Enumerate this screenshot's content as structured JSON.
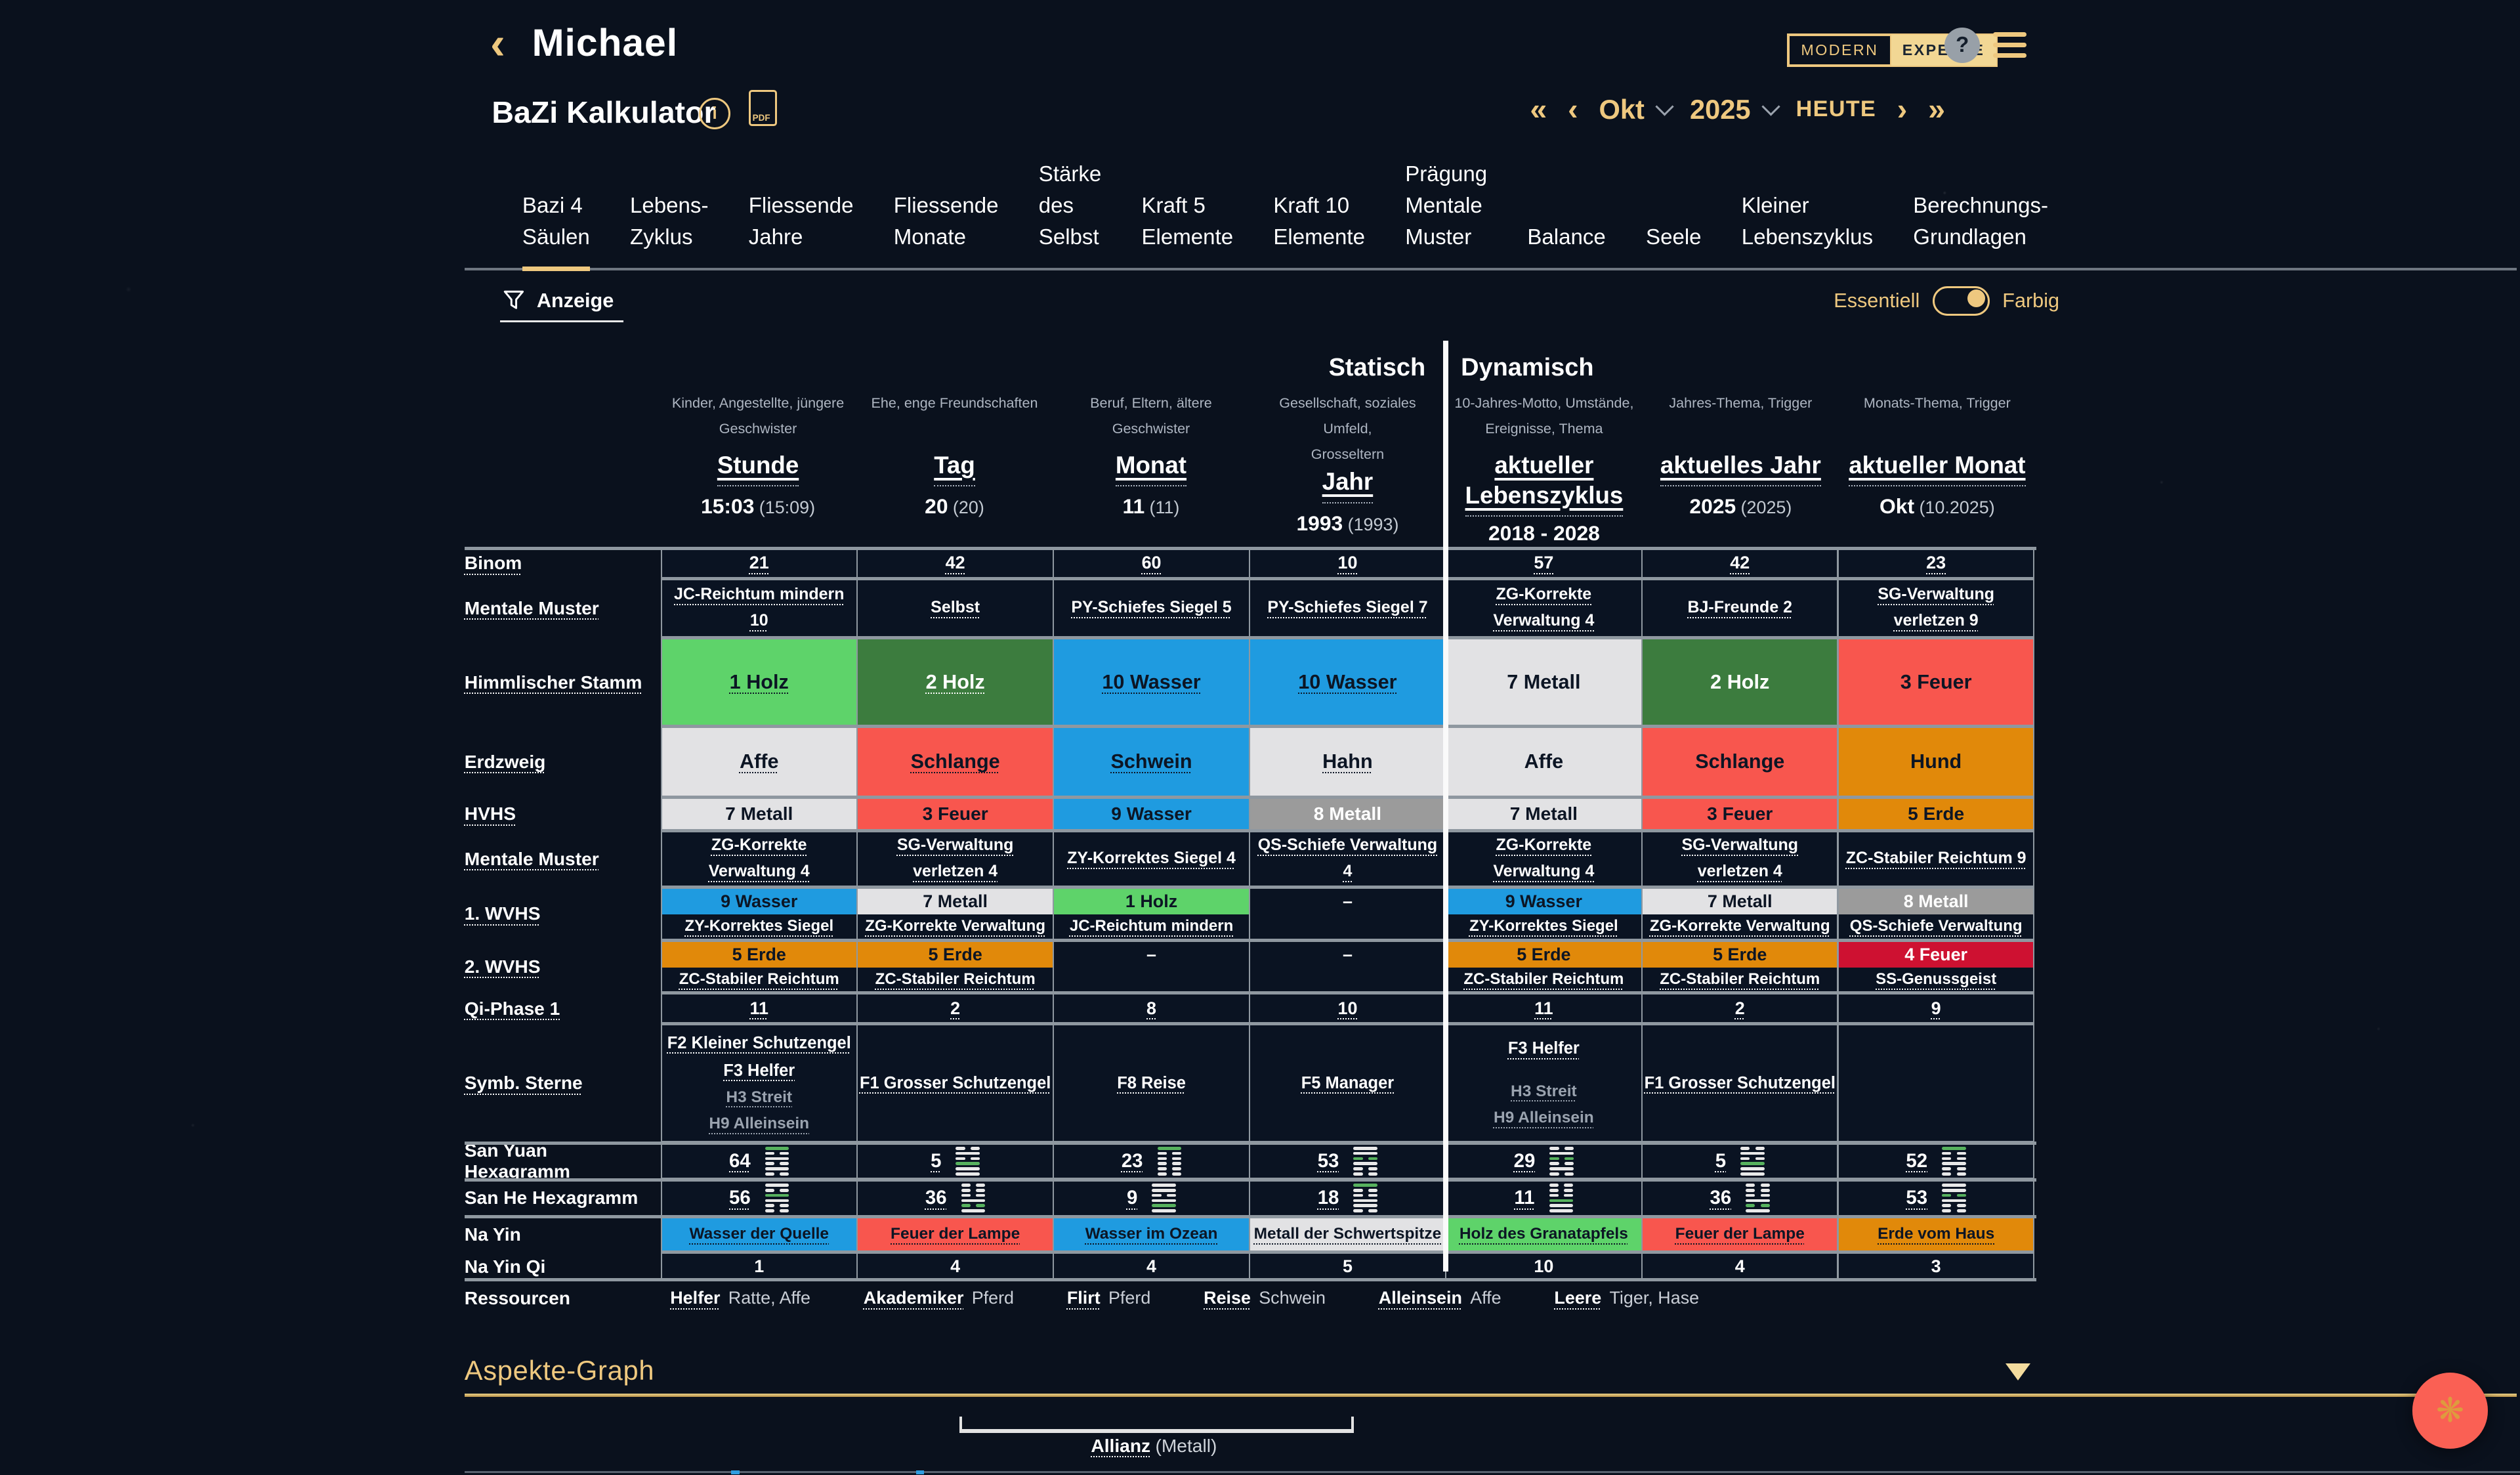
{
  "theme": {
    "accent": "#eec87f",
    "page_bg": "#0a111d",
    "cell_bg": "#0a1322",
    "grid_line": "#8f98a0",
    "muted": "#aeb6c2",
    "fab_bg": "#fa6054",
    "fab_icon": "#de9b3e",
    "help_bg": "#98a0a8",
    "divider": "#fafafa"
  },
  "cell_colors": {
    "blue": "#1f9be0",
    "red": "#f8564e",
    "green": "#5ed36a",
    "dgreen": "#3c7c3e",
    "orange": "#e1890a",
    "light": "#e2e2e4",
    "gray": "#9b9b9b",
    "crimson": "#ce1131",
    "none": "#0a1322"
  },
  "header": {
    "back": "‹",
    "title": "Michael",
    "badge_left": "MODERN",
    "badge_right": "EXPERTE",
    "help": "?"
  },
  "toolbar": {
    "title": "BaZi Kalkulator",
    "info": "i",
    "pdf_label": "PDF"
  },
  "datenav": {
    "first": "«",
    "prev": "‹",
    "month": "Okt",
    "year": "2025",
    "today": "HEUTE",
    "next": "›",
    "last": "»"
  },
  "tabs": [
    {
      "label": "Bazi 4\nSäulen",
      "active": true
    },
    {
      "label": "Lebens-\nZyklus"
    },
    {
      "label": "Fliessende\nJahre"
    },
    {
      "label": "Fliessende\nMonate"
    },
    {
      "label": "Stärke\ndes\nSelbst"
    },
    {
      "label": "Kraft 5\nElemente"
    },
    {
      "label": "Kraft 10\nElemente"
    },
    {
      "label": "Prägung\nMentale\nMuster"
    },
    {
      "label": "Balance"
    },
    {
      "label": "Seele"
    },
    {
      "label": "Kleiner\nLebenszyklus"
    },
    {
      "label": "Berechnungs-\nGrundlagen"
    }
  ],
  "filter": {
    "label": "Anzeige"
  },
  "display_toggle": {
    "left": "Essentiell",
    "right": "Farbig"
  },
  "sections": {
    "static": "Statisch",
    "dynamic": "Dynamisch"
  },
  "columns": [
    {
      "desc": "Kinder, Angestellte, jüngere\nGeschwister",
      "title": "Stunde",
      "value": "15:03",
      "paren": "(15:09)"
    },
    {
      "desc": "Ehe, enge Freundschaften",
      "title": "Tag",
      "value": "20",
      "paren": "(20)"
    },
    {
      "desc": "Beruf, Eltern, ältere Geschwister",
      "title": "Monat",
      "value": "11",
      "paren": "(11)"
    },
    {
      "desc": "Gesellschaft, soziales Umfeld,\nGrosseltern",
      "title": "Jahr",
      "value": "1993",
      "paren": "(1993)"
    },
    {
      "desc": "10-Jahres-Motto, Umstände,\nEreignisse, Thema",
      "title": "aktueller\nLebenszyklus",
      "period": "2018 - 2028"
    },
    {
      "desc": "Jahres-Thema, Trigger",
      "title": "aktuelles Jahr",
      "value": "2025",
      "paren": "(2025)"
    },
    {
      "desc": "Monats-Thema, Trigger",
      "title": "aktueller Monat",
      "value": "Okt",
      "paren": "(10.2025)"
    }
  ],
  "rows": {
    "binom": {
      "label": "Binom",
      "values": [
        "21",
        "42",
        "60",
        "10",
        "57",
        "42",
        "23"
      ]
    },
    "mental1": {
      "label": "Mentale Muster",
      "values": [
        "JC-Reichtum mindern 10",
        "Selbst",
        "PY-Schiefes Siegel 5",
        "PY-Schiefes Siegel 7",
        "ZG-Korrekte Verwaltung 4",
        "BJ-Freunde 2",
        "SG-Verwaltung verletzen 9"
      ]
    },
    "stamm": {
      "label": "Himmlischer Stamm",
      "cells": [
        {
          "t": "1 Holz",
          "c": "green",
          "u": 1
        },
        {
          "t": "2 Holz",
          "c": "dgreen",
          "u": 1
        },
        {
          "t": "10 Wasser",
          "c": "blue",
          "u": 1
        },
        {
          "t": "10 Wasser",
          "c": "blue",
          "u": 1
        },
        {
          "t": "7 Metall",
          "c": "light"
        },
        {
          "t": "2 Holz",
          "c": "dgreen"
        },
        {
          "t": "3 Feuer",
          "c": "red"
        }
      ]
    },
    "erdzweig": {
      "label": "Erdzweig",
      "cells": [
        {
          "t": "Affe",
          "c": "light",
          "u": 1
        },
        {
          "t": "Schlange",
          "c": "red",
          "u": 1
        },
        {
          "t": "Schwein",
          "c": "blue",
          "u": 1
        },
        {
          "t": "Hahn",
          "c": "light",
          "u": 1
        },
        {
          "t": "Affe",
          "c": "light"
        },
        {
          "t": "Schlange",
          "c": "red"
        },
        {
          "t": "Hund",
          "c": "orange"
        }
      ]
    },
    "hvhs": {
      "label": "HVHS",
      "cells": [
        {
          "t": "7 Metall",
          "c": "light"
        },
        {
          "t": "3 Feuer",
          "c": "red"
        },
        {
          "t": "9 Wasser",
          "c": "blue"
        },
        {
          "t": "8 Metall",
          "c": "gray"
        },
        {
          "t": "7 Metall",
          "c": "light"
        },
        {
          "t": "3 Feuer",
          "c": "red"
        },
        {
          "t": "5 Erde",
          "c": "orange"
        }
      ]
    },
    "mental2": {
      "label": "Mentale Muster",
      "values": [
        "ZG-Korrekte Verwaltung 4",
        "SG-Verwaltung verletzen 4",
        "ZY-Korrektes Siegel 4",
        "QS-Schiefe Verwaltung 4",
        "ZG-Korrekte Verwaltung 4",
        "SG-Verwaltung verletzen 4",
        "ZC-Stabiler Reichtum 9"
      ]
    },
    "wvhs1": {
      "label": "1. WVHS",
      "cells": [
        {
          "t": "9 Wasser",
          "c": "blue",
          "l": "ZY-Korrektes Siegel"
        },
        {
          "t": "7 Metall",
          "c": "light",
          "l": "ZG-Korrekte Verwaltung"
        },
        {
          "t": "1 Holz",
          "c": "green",
          "l": "JC-Reichtum mindern"
        },
        {
          "t": "–",
          "c": "none",
          "l": ""
        },
        {
          "t": "9 Wasser",
          "c": "blue",
          "l": "ZY-Korrektes Siegel"
        },
        {
          "t": "7 Metall",
          "c": "light",
          "l": "ZG-Korrekte Verwaltung"
        },
        {
          "t": "8 Metall",
          "c": "gray",
          "l": "QS-Schiefe Verwaltung"
        }
      ]
    },
    "wvhs2": {
      "label": "2. WVHS",
      "cells": [
        {
          "t": "5 Erde",
          "c": "orange",
          "l": "ZC-Stabiler Reichtum"
        },
        {
          "t": "5 Erde",
          "c": "orange",
          "l": "ZC-Stabiler Reichtum"
        },
        {
          "t": "–",
          "c": "none",
          "l": ""
        },
        {
          "t": "–",
          "c": "none",
          "l": ""
        },
        {
          "t": "5 Erde",
          "c": "orange",
          "l": "ZC-Stabiler Reichtum"
        },
        {
          "t": "5 Erde",
          "c": "orange",
          "l": "ZC-Stabiler Reichtum"
        },
        {
          "t": "4 Feuer",
          "c": "crimson",
          "l": "SS-Genussgeist"
        }
      ]
    },
    "qi": {
      "label": "Qi-Phase 1",
      "values": [
        "11",
        "2",
        "8",
        "10",
        "11",
        "2",
        "9"
      ]
    },
    "symb": {
      "label": "Symb. Sterne",
      "cells": [
        {
          "f": [
            "F2 Kleiner Schutzengel",
            "F3 Helfer"
          ],
          "h": [
            "H3 Streit",
            "H9 Alleinsein"
          ]
        },
        {
          "f": [
            "F1 Grosser Schutzengel"
          ],
          "h": []
        },
        {
          "f": [
            "F8 Reise"
          ],
          "h": []
        },
        {
          "f": [
            "F5 Manager"
          ],
          "h": []
        },
        {
          "f": [
            "F3 Helfer"
          ],
          "h": [
            "H3 Streit",
            "H9 Alleinsein"
          ]
        },
        {
          "f": [
            "F1 Grosser Schutzengel"
          ],
          "h": []
        },
        {
          "f": [],
          "h": []
        }
      ]
    },
    "san_yuan": {
      "label": "San Yuan Hexagramm",
      "cells": [
        {
          "n": "64",
          "lines": "101010",
          "g": 0
        },
        {
          "n": "5",
          "lines": "010111",
          "g": 3
        },
        {
          "n": "23",
          "lines": "100000",
          "g": 0
        },
        {
          "n": "53",
          "lines": "110100",
          "g": 2
        },
        {
          "n": "29",
          "lines": "010010",
          "g": 2
        },
        {
          "n": "5",
          "lines": "010111",
          "g": 3
        },
        {
          "n": "52",
          "lines": "100100",
          "g": 0
        }
      ]
    },
    "san_he": {
      "label": "San He Hexagramm",
      "cells": [
        {
          "n": "56",
          "lines": "101100",
          "g": 2
        },
        {
          "n": "36",
          "lines": "000101",
          "g": 4
        },
        {
          "n": "9",
          "lines": "110111",
          "g": 4
        },
        {
          "n": "18",
          "lines": "100110",
          "g": 0
        },
        {
          "n": "11",
          "lines": "000111",
          "g": 3
        },
        {
          "n": "36",
          "lines": "000101",
          "g": 4
        },
        {
          "n": "53",
          "lines": "110100",
          "g": 2
        }
      ]
    },
    "nayin": {
      "label": "Na Yin",
      "cells": [
        {
          "t": "Wasser der Quelle",
          "c": "blue",
          "u": 1
        },
        {
          "t": "Feuer der Lampe",
          "c": "red",
          "u": 1
        },
        {
          "t": "Wasser im Ozean",
          "c": "blue",
          "u": 1
        },
        {
          "t": "Metall der Schwertspitze",
          "c": "light",
          "u": 1
        },
        {
          "t": "Holz des Granatapfels",
          "c": "green",
          "u": 1
        },
        {
          "t": "Feuer der Lampe",
          "c": "red",
          "u": 1
        },
        {
          "t": "Erde vom Haus",
          "c": "orange",
          "u": 1
        }
      ]
    },
    "nayin_qi": {
      "label": "Na Yin Qi",
      "values": [
        "1",
        "4",
        "4",
        "5",
        "10",
        "4",
        "3"
      ]
    },
    "ressourcen": {
      "label": "Ressourcen",
      "items": [
        {
          "key": "Helfer",
          "val": "Ratte, Affe"
        },
        {
          "key": "Akademiker",
          "val": "Pferd"
        },
        {
          "key": "Flirt",
          "val": "Pferd"
        },
        {
          "key": "Reise",
          "val": "Schwein"
        },
        {
          "key": "Alleinsein",
          "val": "Affe"
        },
        {
          "key": "Leere",
          "val": "Tiger, Hase"
        }
      ]
    }
  },
  "aspekte": {
    "title": "Aspekte-Graph"
  },
  "allianz": {
    "label": "Allianz",
    "paren": "(Metall)"
  }
}
